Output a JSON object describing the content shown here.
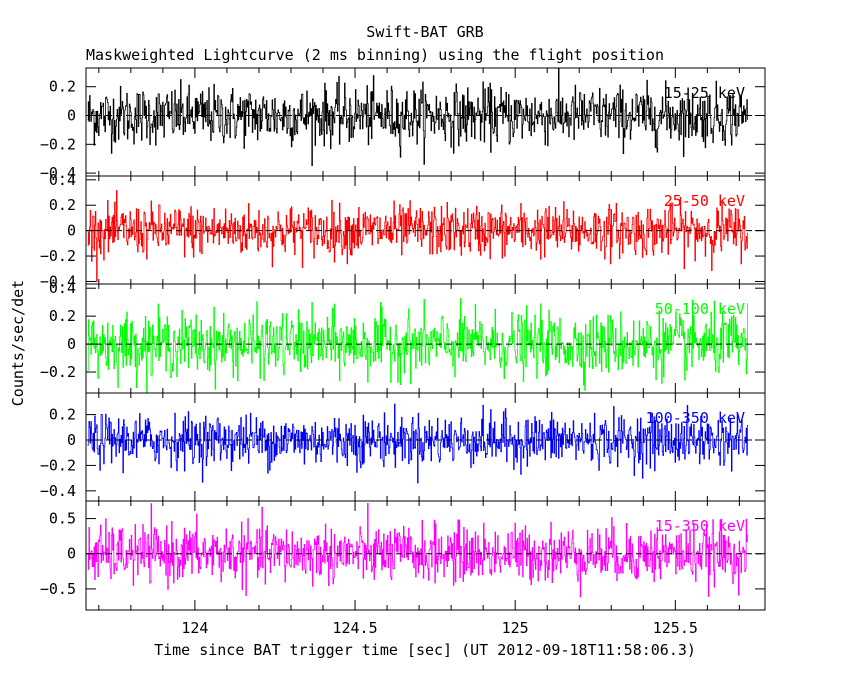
{
  "chart_data": {
    "type": "line",
    "title": "Swift-BAT GRB",
    "subtitle": "Maskweighted Lightcurve (2 ms binning) using the flight position",
    "xlabel": "Time since BAT trigger time [sec] (UT 2012-09-18T11:58:06.3)",
    "ylabel": "Counts/sec/det",
    "xlim": [
      123.66,
      125.78
    ],
    "x_tick_labels": [
      "124",
      "124.5",
      "125",
      "125.5"
    ],
    "x_ticks": [
      124,
      124.5,
      125,
      125.5
    ],
    "bin_width_s": 0.002,
    "data_start": 123.665,
    "data_end": 125.725,
    "panels": [
      {
        "name": "15-25 keV",
        "color": "#000000",
        "ylim": [
          -0.42,
          0.33
        ],
        "yticks": [
          0.2,
          0,
          -0.2,
          -0.4
        ],
        "ytick_labels": [
          "0.2",
          "0",
          "−0.2",
          "−0.4"
        ],
        "noise_sigma": 0.1
      },
      {
        "name": "25-50 keV",
        "color": "#ff0000",
        "ylim": [
          -0.42,
          0.43
        ],
        "yticks": [
          0.4,
          0.2,
          0,
          -0.2,
          -0.4
        ],
        "ytick_labels": [
          "0.4",
          "0.2",
          "0",
          "−0.2",
          "−0.4"
        ],
        "noise_sigma": 0.1
      },
      {
        "name": "50-100 keV",
        "color": "#00ff00",
        "ylim": [
          -0.35,
          0.43
        ],
        "yticks": [
          0.4,
          0.2,
          0,
          -0.2
        ],
        "ytick_labels": [
          "0.4",
          "0.2",
          "0",
          "−0.2"
        ],
        "noise_sigma": 0.11
      },
      {
        "name": "100-350 keV",
        "color": "#0000ff",
        "ylim": [
          -0.48,
          0.37
        ],
        "yticks": [
          0.2,
          0,
          -0.2,
          -0.4
        ],
        "ytick_labels": [
          "0.2",
          "0",
          "−0.2",
          "−0.4"
        ],
        "noise_sigma": 0.1
      },
      {
        "name": "15-350 keV",
        "color": "#ff00ff",
        "ylim": [
          -0.8,
          0.75
        ],
        "yticks": [
          0.5,
          0,
          -0.5
        ],
        "ytick_labels": [
          "0.5",
          "0",
          "−0.5"
        ],
        "noise_sigma": 0.2
      }
    ],
    "grid": false,
    "legend": "per-panel label, top-right"
  }
}
